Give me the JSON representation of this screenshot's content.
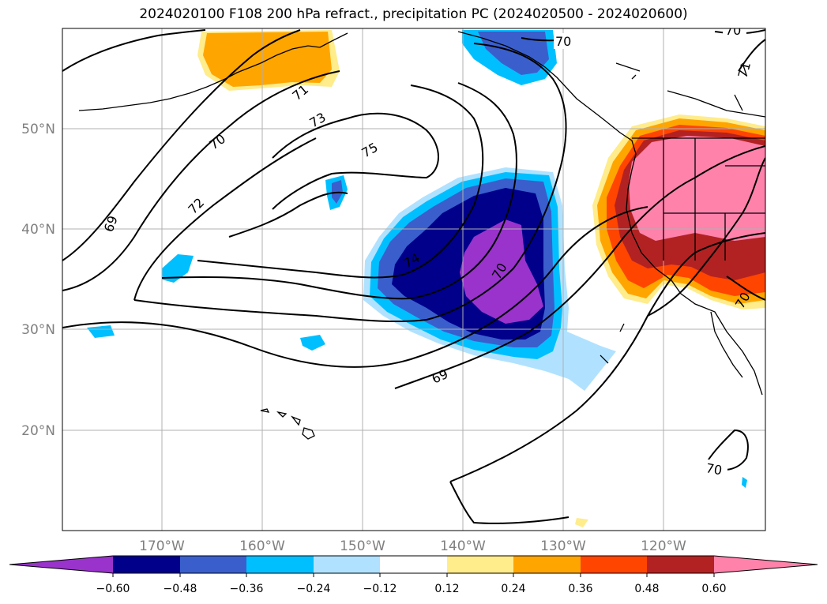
{
  "title": "2024020100 F108 200 hPa refract., precipitation PC (2024020500 - 2024020600)",
  "map": {
    "lat_labels": [
      "50°N",
      "40°N",
      "30°N",
      "20°N"
    ],
    "lon_labels": [
      "170°W",
      "160°W",
      "150°W",
      "140°W",
      "130°W",
      "120°W"
    ],
    "contour_labels": [
      "70",
      "70",
      "71",
      "71",
      "73",
      "70",
      "75",
      "72",
      "69",
      "74",
      "70",
      "69",
      "70",
      "70"
    ]
  },
  "colorbar": {
    "tick_labels": [
      "−0.60",
      "−0.48",
      "−0.36",
      "−0.24",
      "−0.12",
      "0.12",
      "0.24",
      "0.36",
      "0.48",
      "0.60"
    ],
    "colors": [
      "#9933cc",
      "#00008b",
      "#3a5fcd",
      "#00bfff",
      "#b0e2ff",
      "#ffffff",
      "#ffec8b",
      "#ffa500",
      "#ff4500",
      "#b22222",
      "#ff82ab"
    ]
  }
}
